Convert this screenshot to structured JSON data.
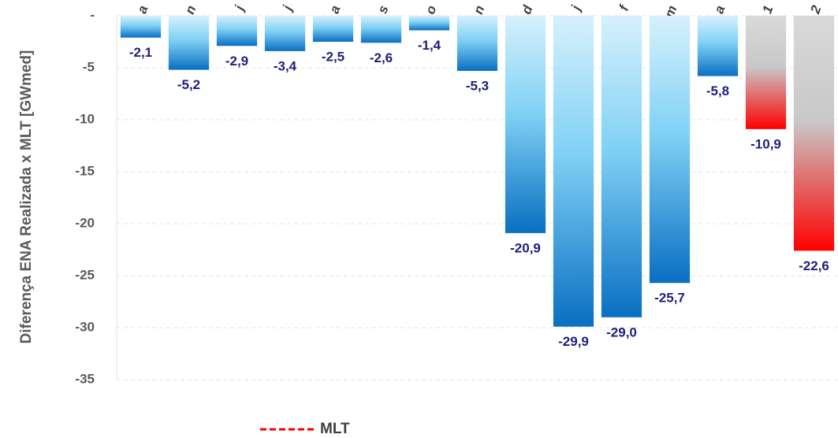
{
  "chart_data": {
    "type": "bar",
    "y_label": "Diferença ENA Realizada x MLT [GWmed]",
    "categories": [
      "a",
      "n",
      "j",
      "j",
      "a",
      "s",
      "o",
      "n",
      "d",
      "j",
      "f",
      "m",
      "a",
      "1",
      "2"
    ],
    "values": [
      -2.1,
      -5.2,
      -2.9,
      -3.4,
      -2.5,
      -2.6,
      -1.4,
      -5.3,
      -20.9,
      -29.9,
      -29.0,
      -25.7,
      -5.8,
      -10.9,
      -22.6
    ],
    "value_labels": [
      "-2,1",
      "-5,2",
      "-2,9",
      "-3,4",
      "-2,5",
      "-2,6",
      "-1,4",
      "-5,3",
      "-20,9",
      "-29,9",
      "-29,0",
      "-25,7",
      "-5,8",
      "-10,9",
      "-22,6"
    ],
    "colors": [
      "#0a6fc2",
      "#0a6fc2",
      "#0a6fc2",
      "#0a6fc2",
      "#0a6fc2",
      "#0a6fc2",
      "#0a6fc2",
      "#0a6fc2",
      "#0a6fc2",
      "#0a6fc2",
      "#0a6fc2",
      "#0a6fc2",
      "#0a6fc2",
      "#ff0000",
      "#ff0000"
    ],
    "ylim": [
      -35,
      0
    ],
    "yticks": [
      {
        "value": 0,
        "label": "-"
      },
      -5,
      -10,
      -15,
      -20,
      -25,
      -30,
      -35
    ],
    "grid": true,
    "legend": {
      "name": "MLT",
      "color": "#ff0000"
    }
  }
}
